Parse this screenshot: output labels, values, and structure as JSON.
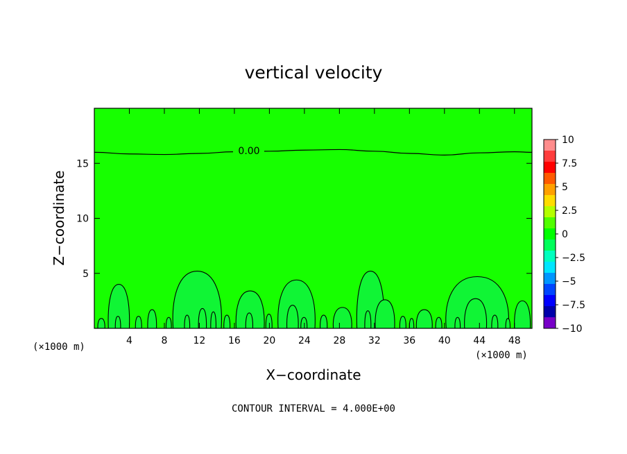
{
  "chart_data": {
    "type": "contour",
    "title": "vertical velocity",
    "xlabel": "X−coordinate",
    "ylabel": "Z−coordinate",
    "x_unit_label": "(×1000 m)",
    "y_unit_label": "(×1000 m)",
    "xlim": [
      0,
      50
    ],
    "ylim": [
      0,
      20
    ],
    "x_ticks": [
      4,
      8,
      12,
      16,
      20,
      24,
      28,
      32,
      36,
      40,
      44,
      48
    ],
    "x_tick_labels": [
      "4",
      "8",
      "12",
      "16",
      "20",
      "24",
      "28",
      "32",
      "36",
      "40",
      "44",
      "48"
    ],
    "y_ticks": [
      5,
      10,
      15
    ],
    "y_tick_labels": [
      "5",
      "10",
      "15"
    ],
    "zero_contour": {
      "label": "0.00",
      "x": [
        0,
        4,
        8,
        12,
        16,
        20,
        24,
        28,
        32,
        36,
        40,
        44,
        48,
        50
      ],
      "z": [
        16.0,
        15.85,
        15.8,
        15.9,
        16.05,
        16.1,
        16.2,
        16.25,
        16.1,
        15.9,
        15.75,
        15.95,
        16.05,
        16.0
      ]
    },
    "cells": [
      {
        "x0": 9.0,
        "x1": 14.5,
        "top": 5.2
      },
      {
        "x0": 1.6,
        "x1": 4.0,
        "top": 4.0
      },
      {
        "x0": 16.2,
        "x1": 19.4,
        "top": 3.4
      },
      {
        "x0": 21.0,
        "x1": 25.2,
        "top": 4.4
      },
      {
        "x0": 30.0,
        "x1": 33.1,
        "top": 5.2
      },
      {
        "x0": 40.2,
        "x1": 47.3,
        "top": 4.7
      },
      {
        "x0": 32.1,
        "x1": 34.3,
        "top": 2.6
      },
      {
        "x0": 42.3,
        "x1": 44.8,
        "top": 2.7
      },
      {
        "x0": 48.0,
        "x1": 49.8,
        "top": 2.5
      },
      {
        "x0": 36.8,
        "x1": 38.6,
        "top": 1.7
      },
      {
        "x0": 27.3,
        "x1": 29.4,
        "top": 1.9
      },
      {
        "x0": 22.0,
        "x1": 23.3,
        "top": 2.1
      },
      {
        "x0": 11.9,
        "x1": 12.8,
        "top": 1.8
      },
      {
        "x0": 6.1,
        "x1": 7.1,
        "top": 1.7
      },
      {
        "x0": 0.4,
        "x1": 1.2,
        "top": 0.9
      },
      {
        "x0": 4.7,
        "x1": 5.4,
        "top": 1.1
      },
      {
        "x0": 14.8,
        "x1": 15.5,
        "top": 1.2
      },
      {
        "x0": 19.6,
        "x1": 20.3,
        "top": 1.3
      },
      {
        "x0": 25.8,
        "x1": 26.6,
        "top": 1.2
      },
      {
        "x0": 34.9,
        "x1": 35.6,
        "top": 1.1
      },
      {
        "x0": 39.0,
        "x1": 39.7,
        "top": 1.0
      },
      {
        "x0": 45.4,
        "x1": 46.1,
        "top": 1.2
      },
      {
        "x0": 8.2,
        "x1": 8.8,
        "top": 1.0
      },
      {
        "x0": 17.3,
        "x1": 18.1,
        "top": 1.4
      },
      {
        "x0": 2.4,
        "x1": 3.0,
        "top": 1.1
      },
      {
        "x0": 13.3,
        "x1": 13.9,
        "top": 1.5
      },
      {
        "x0": 30.9,
        "x1": 31.6,
        "top": 1.6
      },
      {
        "x0": 23.6,
        "x1": 24.3,
        "top": 1.0
      },
      {
        "x0": 10.3,
        "x1": 10.9,
        "top": 1.2
      },
      {
        "x0": 36.0,
        "x1": 36.5,
        "top": 0.9
      },
      {
        "x0": 41.2,
        "x1": 41.8,
        "top": 1.0
      },
      {
        "x0": 47.0,
        "x1": 47.5,
        "top": 0.9
      }
    ],
    "colorbar": {
      "tick_labels": [
        "10",
        "7.5",
        "5",
        "2.5",
        "0",
        "−2.5",
        "−5",
        "−7.5",
        "−10"
      ],
      "colors": [
        "#ff8c8c",
        "#ff3c3c",
        "#ff0000",
        "#ff5a00",
        "#ffa000",
        "#ffdc00",
        "#b4ff00",
        "#50ff00",
        "#00ff00",
        "#00ff5a",
        "#00ffbe",
        "#00e6ff",
        "#0096ff",
        "#0046ff",
        "#0000ff",
        "#0000aa",
        "#7800c8"
      ]
    },
    "fill_color": "#17ff00",
    "grid": false,
    "footer": "CONTOUR INTERVAL = 4.000E+00"
  }
}
